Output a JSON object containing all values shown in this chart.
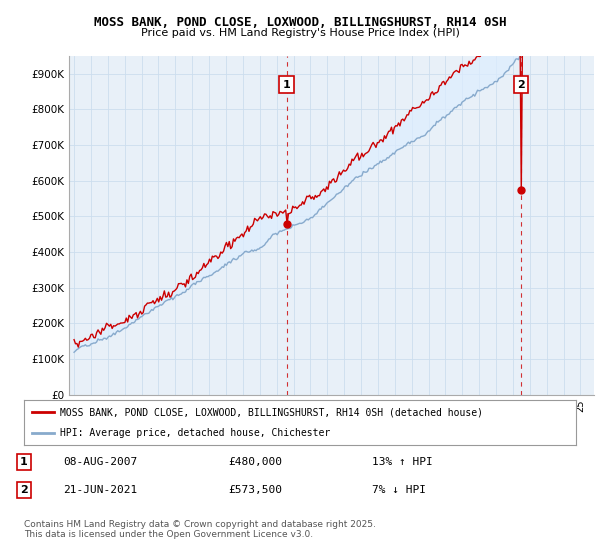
{
  "title": "MOSS BANK, POND CLOSE, LOXWOOD, BILLINGSHURST, RH14 0SH",
  "subtitle": "Price paid vs. HM Land Registry's House Price Index (HPI)",
  "ylabel_ticks": [
    "£0",
    "£100K",
    "£200K",
    "£300K",
    "£400K",
    "£500K",
    "£600K",
    "£700K",
    "£800K",
    "£900K"
  ],
  "ylim": [
    0,
    950000
  ],
  "xlim_start": 1994.7,
  "xlim_end": 2025.8,
  "sale1_date": 2007.59,
  "sale1_price": 480000,
  "sale1_label": "1",
  "sale1_pct": "13% ↑ HPI",
  "sale1_date_str": "08-AUG-2007",
  "sale2_date": 2021.47,
  "sale2_price": 573500,
  "sale2_label": "2",
  "sale2_pct": "7% ↓ HPI",
  "sale2_date_str": "21-JUN-2021",
  "legend_label_red": "MOSS BANK, POND CLOSE, LOXWOOD, BILLINGSHURST, RH14 0SH (detached house)",
  "legend_label_blue": "HPI: Average price, detached house, Chichester",
  "footnote": "Contains HM Land Registry data © Crown copyright and database right 2025.\nThis data is licensed under the Open Government Licence v3.0.",
  "red_color": "#cc0000",
  "blue_color": "#88aacc",
  "fill_color": "#ddeeff",
  "vline_color": "#cc0000",
  "background_color": "#ffffff",
  "grid_color": "#ccddee",
  "chart_bg": "#e8f0f8"
}
